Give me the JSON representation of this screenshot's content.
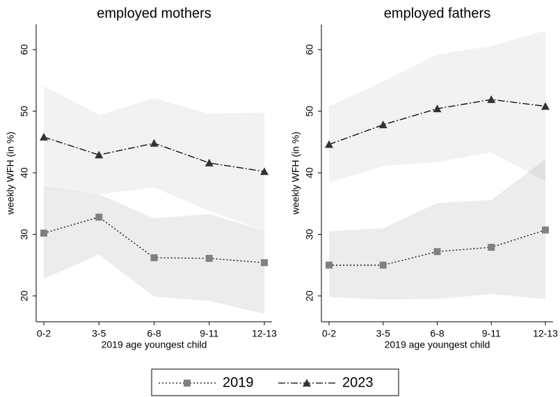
{
  "chart_data": [
    {
      "type": "line",
      "title": "employed mothers",
      "ylabel": "weekly WFH (in %)",
      "xlabel": "2019 age youngest child",
      "categories": [
        "0-2",
        "3-5",
        "6-8",
        "9-11",
        "12-13"
      ],
      "ylim": [
        15.8,
        64.1
      ],
      "yticks": [
        20,
        30,
        40,
        50,
        60
      ],
      "series": [
        {
          "name": "2019",
          "color": "#808080",
          "marker": "square",
          "linestyle": "dotted",
          "values": [
            30.2,
            32.8,
            26.2,
            26.1,
            25.4
          ],
          "lower": [
            22.8,
            26.7,
            19.9,
            19.2,
            17.1
          ],
          "upper": [
            37.7,
            36.5,
            32.6,
            33.3,
            30.6
          ]
        },
        {
          "name": "2023",
          "color": "#333333",
          "marker": "triangle",
          "linestyle": "dashdot",
          "values": [
            45.8,
            42.9,
            44.8,
            41.6,
            40.2
          ],
          "lower": [
            37.6,
            36.5,
            37.6,
            33.8,
            30.6
          ],
          "upper": [
            54.1,
            49.4,
            52.1,
            49.6,
            49.8
          ]
        }
      ]
    },
    {
      "type": "line",
      "title": "employed fathers",
      "ylabel": "weekly WFH (in %)",
      "xlabel": "2019 age youngest child",
      "categories": [
        "0-2",
        "3-5",
        "6-8",
        "9-11",
        "12-13"
      ],
      "ylim": [
        15.8,
        64.1
      ],
      "yticks": [
        20,
        30,
        40,
        50,
        60
      ],
      "series": [
        {
          "color": "#808080",
          "marker": "square",
          "linestyle": "dotted",
          "values": [
            25.0,
            25.0,
            27.2,
            27.9,
            30.7
          ],
          "lower": [
            19.8,
            19.4,
            19.5,
            20.3,
            19.5
          ],
          "upper": [
            30.5,
            31.0,
            35.1,
            35.6,
            42.2
          ]
        },
        {
          "color": "#333333",
          "marker": "triangle",
          "linestyle": "dashdot",
          "values": [
            44.6,
            47.8,
            50.4,
            51.9,
            50.8
          ],
          "lower": [
            38.4,
            41.1,
            41.7,
            43.3,
            38.6
          ],
          "upper": [
            50.8,
            54.8,
            59.2,
            60.6,
            63.1
          ]
        }
      ]
    }
  ]
}
